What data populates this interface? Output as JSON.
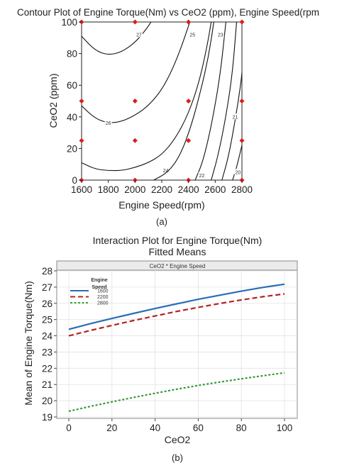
{
  "chart_data": [
    {
      "type": "contour",
      "title": "Contour Plot of Engine Torque(Nm) vs CeO2 (ppm), Engine Speed(rpm",
      "xlabel": "Engine Speed(rpm)",
      "ylabel": "CeO2 (ppm)",
      "xlim": [
        1600,
        2800
      ],
      "ylim": [
        0,
        100
      ],
      "x_ticks": [
        1600,
        1800,
        2000,
        2200,
        2400,
        2600,
        2800
      ],
      "y_ticks": [
        0,
        20,
        40,
        60,
        80,
        100
      ],
      "caption": "(a)",
      "design_points": [
        {
          "x": 1600,
          "y": 0
        },
        {
          "x": 1600,
          "y": 25
        },
        {
          "x": 1600,
          "y": 50
        },
        {
          "x": 1600,
          "y": 100
        },
        {
          "x": 2000,
          "y": 0
        },
        {
          "x": 2000,
          "y": 25
        },
        {
          "x": 2000,
          "y": 50
        },
        {
          "x": 2000,
          "y": 100
        },
        {
          "x": 2400,
          "y": 0
        },
        {
          "x": 2400,
          "y": 25
        },
        {
          "x": 2400,
          "y": 50
        },
        {
          "x": 2400,
          "y": 100
        },
        {
          "x": 2800,
          "y": 0
        },
        {
          "x": 2800,
          "y": 25
        },
        {
          "x": 2800,
          "y": 50
        },
        {
          "x": 2800,
          "y": 100
        }
      ],
      "contours": [
        {
          "label": "27",
          "label_at": [
            2030,
            92
          ],
          "points": [
            [
              1600,
              91
            ],
            [
              1700,
              82
            ],
            [
              1800,
              79
            ],
            [
              1900,
              81
            ],
            [
              2000,
              87
            ],
            [
              2080,
              95
            ],
            [
              2120,
              100
            ]
          ]
        },
        {
          "label": "26",
          "label_at": [
            1800,
            36
          ],
          "points": [
            [
              1600,
              47
            ],
            [
              1700,
              39
            ],
            [
              1800,
              36
            ],
            [
              1900,
              37
            ],
            [
              2000,
              41
            ],
            [
              2100,
              47
            ],
            [
              2200,
              57
            ],
            [
              2280,
              70
            ],
            [
              2350,
              85
            ],
            [
              2410,
              100
            ]
          ]
        },
        {
          "label": "24",
          "label_at": [
            2230,
            6
          ],
          "points": [
            [
              1600,
              11
            ],
            [
              1700,
              7
            ],
            [
              1800,
              6
            ],
            [
              1900,
              6
            ],
            [
              2000,
              8
            ],
            [
              2100,
              11
            ],
            [
              2200,
              16
            ],
            [
              2300,
              26
            ],
            [
              2400,
              42
            ],
            [
              2480,
              62
            ],
            [
              2540,
              85
            ],
            [
              2570,
              100
            ]
          ]
        },
        {
          "label": "25",
          "label_at": [
            2430,
            92
          ],
          "points": [
            [
              2140,
              0
            ],
            [
              2250,
              5
            ],
            [
              2340,
              16
            ],
            [
              2420,
              34
            ],
            [
              2490,
              56
            ],
            [
              2550,
              78
            ],
            [
              2590,
              100
            ]
          ]
        },
        {
          "label": "22",
          "label_at": [
            2500,
            3
          ],
          "points": [
            [
              2450,
              0
            ],
            [
              2510,
              12
            ],
            [
              2580,
              38
            ],
            [
              2640,
              68
            ],
            [
              2680,
              100
            ]
          ]
        },
        {
          "label": "23",
          "label_at": [
            2640,
            92
          ],
          "points": [
            [
              2570,
              0
            ],
            [
              2620,
              15
            ],
            [
              2680,
              40
            ],
            [
              2730,
              68
            ],
            [
              2760,
              100
            ]
          ]
        },
        {
          "label": "21",
          "label_at": [
            2750,
            40
          ],
          "points": [
            [
              2650,
              0
            ],
            [
              2700,
              15
            ],
            [
              2750,
              38
            ],
            [
              2790,
              60
            ],
            [
              2800,
              68
            ]
          ]
        },
        {
          "label": "20",
          "label_at": [
            2770,
            5
          ],
          "points": [
            [
              2730,
              0
            ],
            [
              2760,
              8
            ],
            [
              2800,
              22
            ]
          ]
        }
      ]
    },
    {
      "type": "line",
      "title": "Interaction Plot for Engine Torque(Nm)",
      "subtitle": "Fitted Means",
      "panel_title": "CeO2 * Engine Speed",
      "xlabel": "CeO2",
      "ylabel": "Mean of Engine Torque(Nm)",
      "xlim": [
        0,
        100
      ],
      "ylim": [
        19,
        28
      ],
      "x_ticks": [
        0,
        20,
        40,
        60,
        80,
        100
      ],
      "y_ticks": [
        19,
        20,
        21,
        22,
        23,
        24,
        25,
        26,
        27,
        28
      ],
      "grid": true,
      "legend_title": "Engine Speed",
      "legend_position": "top-left",
      "caption": "(b)",
      "x": [
        0,
        10,
        20,
        30,
        40,
        50,
        60,
        70,
        80,
        90,
        100
      ],
      "series": [
        {
          "name": "1600",
          "color": "#2a6db5",
          "style": "solid",
          "values": [
            24.4,
            24.75,
            25.07,
            25.38,
            25.68,
            25.97,
            26.25,
            26.5,
            26.75,
            26.98,
            27.18
          ]
        },
        {
          "name": "2200",
          "color": "#b22424",
          "style": "dashed",
          "values": [
            24.0,
            24.33,
            24.64,
            24.94,
            25.22,
            25.5,
            25.75,
            25.99,
            26.21,
            26.41,
            26.58
          ]
        },
        {
          "name": "2800",
          "color": "#3a9a3a",
          "style": "dotted",
          "values": [
            19.35,
            19.65,
            19.93,
            20.2,
            20.46,
            20.71,
            20.94,
            21.15,
            21.35,
            21.54,
            21.72
          ]
        }
      ]
    }
  ]
}
